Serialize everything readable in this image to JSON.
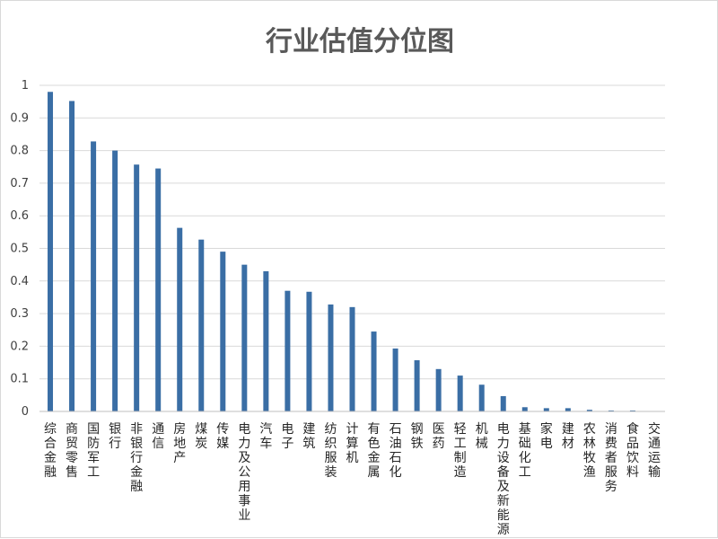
{
  "chart_data": {
    "type": "bar",
    "title": "行业估值分位图",
    "xlabel": "",
    "ylabel": "",
    "ylim": [
      0,
      1
    ],
    "yticks": [
      "0",
      "0.1",
      "0.2",
      "0.3",
      "0.4",
      "0.5",
      "0.6",
      "0.7",
      "0.8",
      "0.9",
      "1"
    ],
    "grid": true,
    "legend": "none",
    "bar_color": "#3a6ea5",
    "categories": [
      "综合金融",
      "商贸零售",
      "国防军工",
      "银行",
      "非银行金融",
      "通信",
      "房地产",
      "煤炭",
      "传媒",
      "电力及公用事业",
      "汽车",
      "电子",
      "建筑",
      "纺织服装",
      "计算机",
      "有色金属",
      "石油石化",
      "钢铁",
      "医药",
      "轻工制造",
      "机械",
      "电力设备及新能源",
      "基础化工",
      "家电",
      "建材",
      "农林牧渔",
      "消费者服务",
      "食品饮料",
      "交通运输"
    ],
    "values": [
      0.98,
      0.952,
      0.828,
      0.8,
      0.757,
      0.745,
      0.563,
      0.527,
      0.49,
      0.45,
      0.43,
      0.37,
      0.367,
      0.328,
      0.32,
      0.245,
      0.193,
      0.157,
      0.13,
      0.11,
      0.082,
      0.047,
      0.013,
      0.01,
      0.01,
      0.005,
      0.003,
      0.003,
      0.0
    ]
  }
}
